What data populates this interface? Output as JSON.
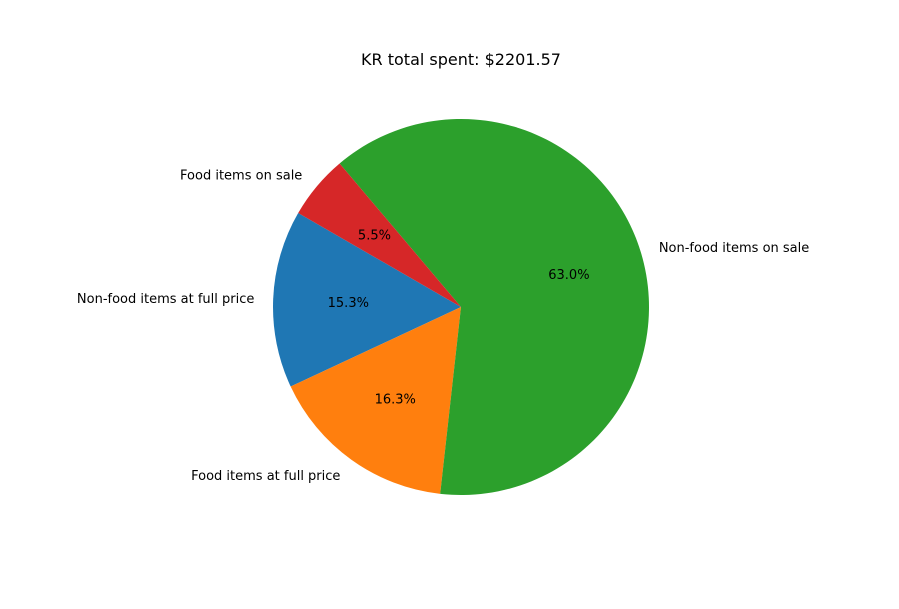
{
  "chart_data": {
    "type": "pie",
    "title": "KR total spent: $2201.57",
    "slices": [
      {
        "label": "Non-food items at full price",
        "value": 15.3,
        "pct_label": "15.3%",
        "color": "#1f77b4"
      },
      {
        "label": "Food items at full price",
        "value": 16.3,
        "pct_label": "16.3%",
        "color": "#ff7f0e"
      },
      {
        "label": "Non-food items on sale",
        "value": 63.0,
        "pct_label": "63.0%",
        "color": "#2ca02c"
      },
      {
        "label": "Food items on sale",
        "value": 5.5,
        "pct_label": "5.5%",
        "color": "#d62728"
      }
    ],
    "start_angle_deg": 150,
    "direction": "counterclockwise"
  }
}
